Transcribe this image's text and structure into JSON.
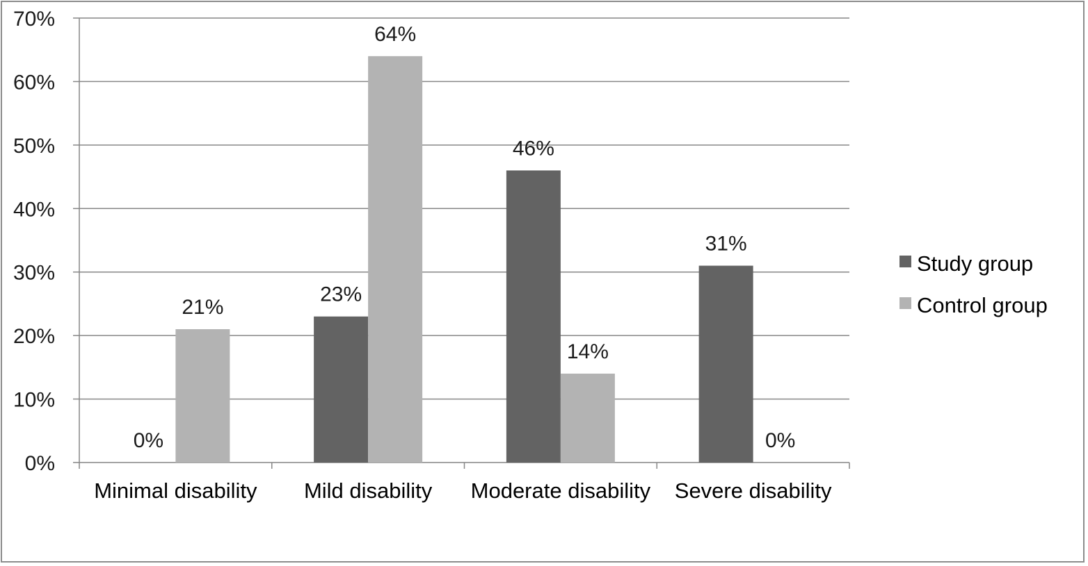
{
  "chart_data": {
    "type": "bar",
    "title": "",
    "xlabel": "",
    "ylabel": "",
    "ylim": [
      0,
      70
    ],
    "ytick_step": 10,
    "ytick_suffix": "%",
    "grid": true,
    "legend_position": "right",
    "categories": [
      "Minimal disability",
      "Mild disability",
      "Moderate disability",
      "Severe disability"
    ],
    "series": [
      {
        "name": "Study group",
        "color": "#636363",
        "values": [
          0,
          23,
          46,
          31
        ]
      },
      {
        "name": "Control group",
        "color": "#b3b3b3",
        "values": [
          21,
          64,
          14,
          0
        ]
      }
    ],
    "data_labels": [
      [
        "0%",
        "23%",
        "46%",
        "31%"
      ],
      [
        "21%",
        "64%",
        "14%",
        "0%"
      ]
    ]
  }
}
